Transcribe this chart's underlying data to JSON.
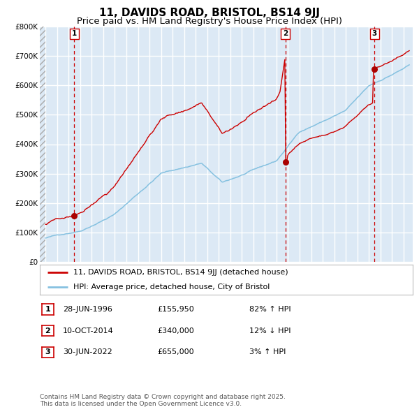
{
  "title": "11, DAVIDS ROAD, BRISTOL, BS14 9JJ",
  "subtitle": "Price paid vs. HM Land Registry's House Price Index (HPI)",
  "ylim": [
    0,
    800000
  ],
  "yticks": [
    0,
    100000,
    200000,
    300000,
    400000,
    500000,
    600000,
    700000,
    800000
  ],
  "ytick_labels": [
    "£0",
    "£100K",
    "£200K",
    "£300K",
    "£400K",
    "£500K",
    "£600K",
    "£700K",
    "£800K"
  ],
  "hpi_color": "#85C1E0",
  "price_color": "#CC0000",
  "vline_color": "#CC0000",
  "marker_color": "#AA0000",
  "background_color": "#DCE9F5",
  "grid_color": "#FFFFFF",
  "sale_dates": [
    "1996-06-28",
    "2014-10-10",
    "2022-06-30"
  ],
  "sale_prices": [
    155950,
    340000,
    655000
  ],
  "sale_labels": [
    "1",
    "2",
    "3"
  ],
  "legend_line1": "11, DAVIDS ROAD, BRISTOL, BS14 9JJ (detached house)",
  "legend_line2": "HPI: Average price, detached house, City of Bristol",
  "table_rows": [
    [
      "1",
      "28-JUN-1996",
      "£155,950",
      "82% ↑ HPI"
    ],
    [
      "2",
      "10-OCT-2014",
      "£340,000",
      "12% ↓ HPI"
    ],
    [
      "3",
      "30-JUN-2022",
      "£655,000",
      "3% ↑ HPI"
    ]
  ],
  "footnote": "Contains HM Land Registry data © Crown copyright and database right 2025.\nThis data is licensed under the Open Government Licence v3.0.",
  "title_fontsize": 11,
  "subtitle_fontsize": 9.5,
  "tick_fontsize": 7.5,
  "legend_fontsize": 8,
  "table_fontsize": 8,
  "footnote_fontsize": 6.5
}
